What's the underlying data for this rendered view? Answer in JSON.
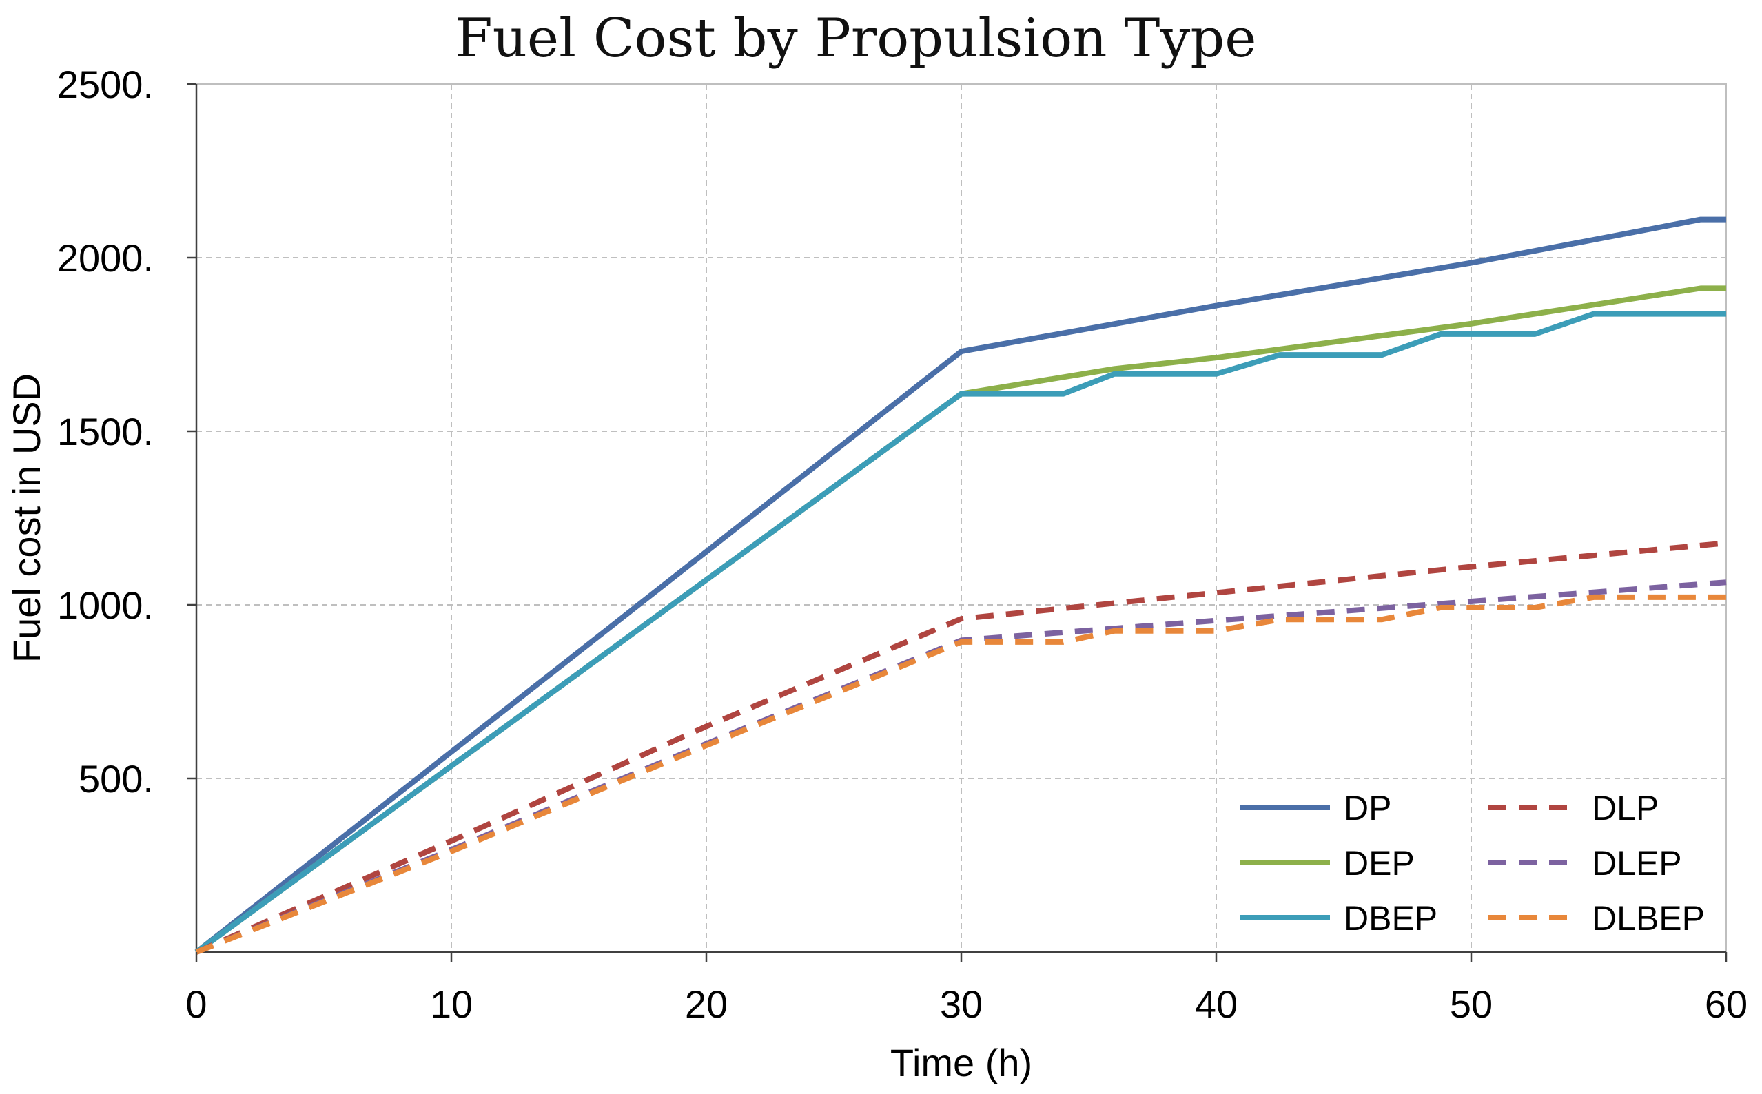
{
  "chart_data": {
    "type": "line",
    "title": "Fuel Cost by Propulsion Type",
    "xlabel": "Time (h)",
    "ylabel": "Fuel cost in USD",
    "xlim": [
      0,
      60
    ],
    "ylim": [
      0,
      2500
    ],
    "x_ticks": [
      0,
      10,
      20,
      30,
      40,
      50,
      60
    ],
    "x_tick_labels": [
      "0",
      "10",
      "20",
      "30",
      "40",
      "50",
      "60"
    ],
    "y_ticks": [
      500,
      1000,
      1500,
      2000,
      2500
    ],
    "y_tick_labels": [
      "500.",
      "1000.",
      "1500.",
      "2000.",
      "2500."
    ],
    "grid": true,
    "legend_position": "bottom-right",
    "series": [
      {
        "name": "DP",
        "color": "#4a6fa8",
        "dashed": false,
        "points": [
          [
            0,
            0
          ],
          [
            30,
            1730
          ],
          [
            40,
            1862
          ],
          [
            50,
            1985
          ],
          [
            59,
            2110
          ],
          [
            60,
            2110
          ]
        ]
      },
      {
        "name": "DEP",
        "color": "#8db04a",
        "dashed": false,
        "points": [
          [
            0,
            0
          ],
          [
            30,
            1608
          ],
          [
            36,
            1680
          ],
          [
            40,
            1712
          ],
          [
            50,
            1810
          ],
          [
            59,
            1912
          ],
          [
            60,
            1912
          ]
        ]
      },
      {
        "name": "DBEP",
        "color": "#3c9db8",
        "dashed": false,
        "points": [
          [
            0,
            0
          ],
          [
            30,
            1608
          ],
          [
            34,
            1608
          ],
          [
            36,
            1665
          ],
          [
            40,
            1665
          ],
          [
            42.5,
            1720
          ],
          [
            46.5,
            1720
          ],
          [
            48.8,
            1780
          ],
          [
            52.5,
            1780
          ],
          [
            54.8,
            1838
          ],
          [
            60,
            1838
          ]
        ]
      },
      {
        "name": "DLP",
        "color": "#b04540",
        "dashed": true,
        "points": [
          [
            0,
            0
          ],
          [
            10,
            320
          ],
          [
            20,
            650
          ],
          [
            30,
            960
          ],
          [
            40,
            1035
          ],
          [
            50,
            1110
          ],
          [
            60,
            1178
          ]
        ]
      },
      {
        "name": "DLEP",
        "color": "#7c62a0",
        "dashed": true,
        "points": [
          [
            0,
            0
          ],
          [
            10,
            295
          ],
          [
            20,
            600
          ],
          [
            30,
            898
          ],
          [
            40,
            955
          ],
          [
            50,
            1010
          ],
          [
            60,
            1065
          ]
        ]
      },
      {
        "name": "DLBEP",
        "color": "#e8873a",
        "dashed": true,
        "points": [
          [
            0,
            0
          ],
          [
            10,
            290
          ],
          [
            20,
            595
          ],
          [
            30,
            893
          ],
          [
            34,
            893
          ],
          [
            36,
            925
          ],
          [
            40,
            925
          ],
          [
            42.5,
            958
          ],
          [
            46.5,
            958
          ],
          [
            48.8,
            992
          ],
          [
            52.5,
            992
          ],
          [
            54.8,
            1022
          ],
          [
            60,
            1022
          ]
        ]
      }
    ]
  }
}
